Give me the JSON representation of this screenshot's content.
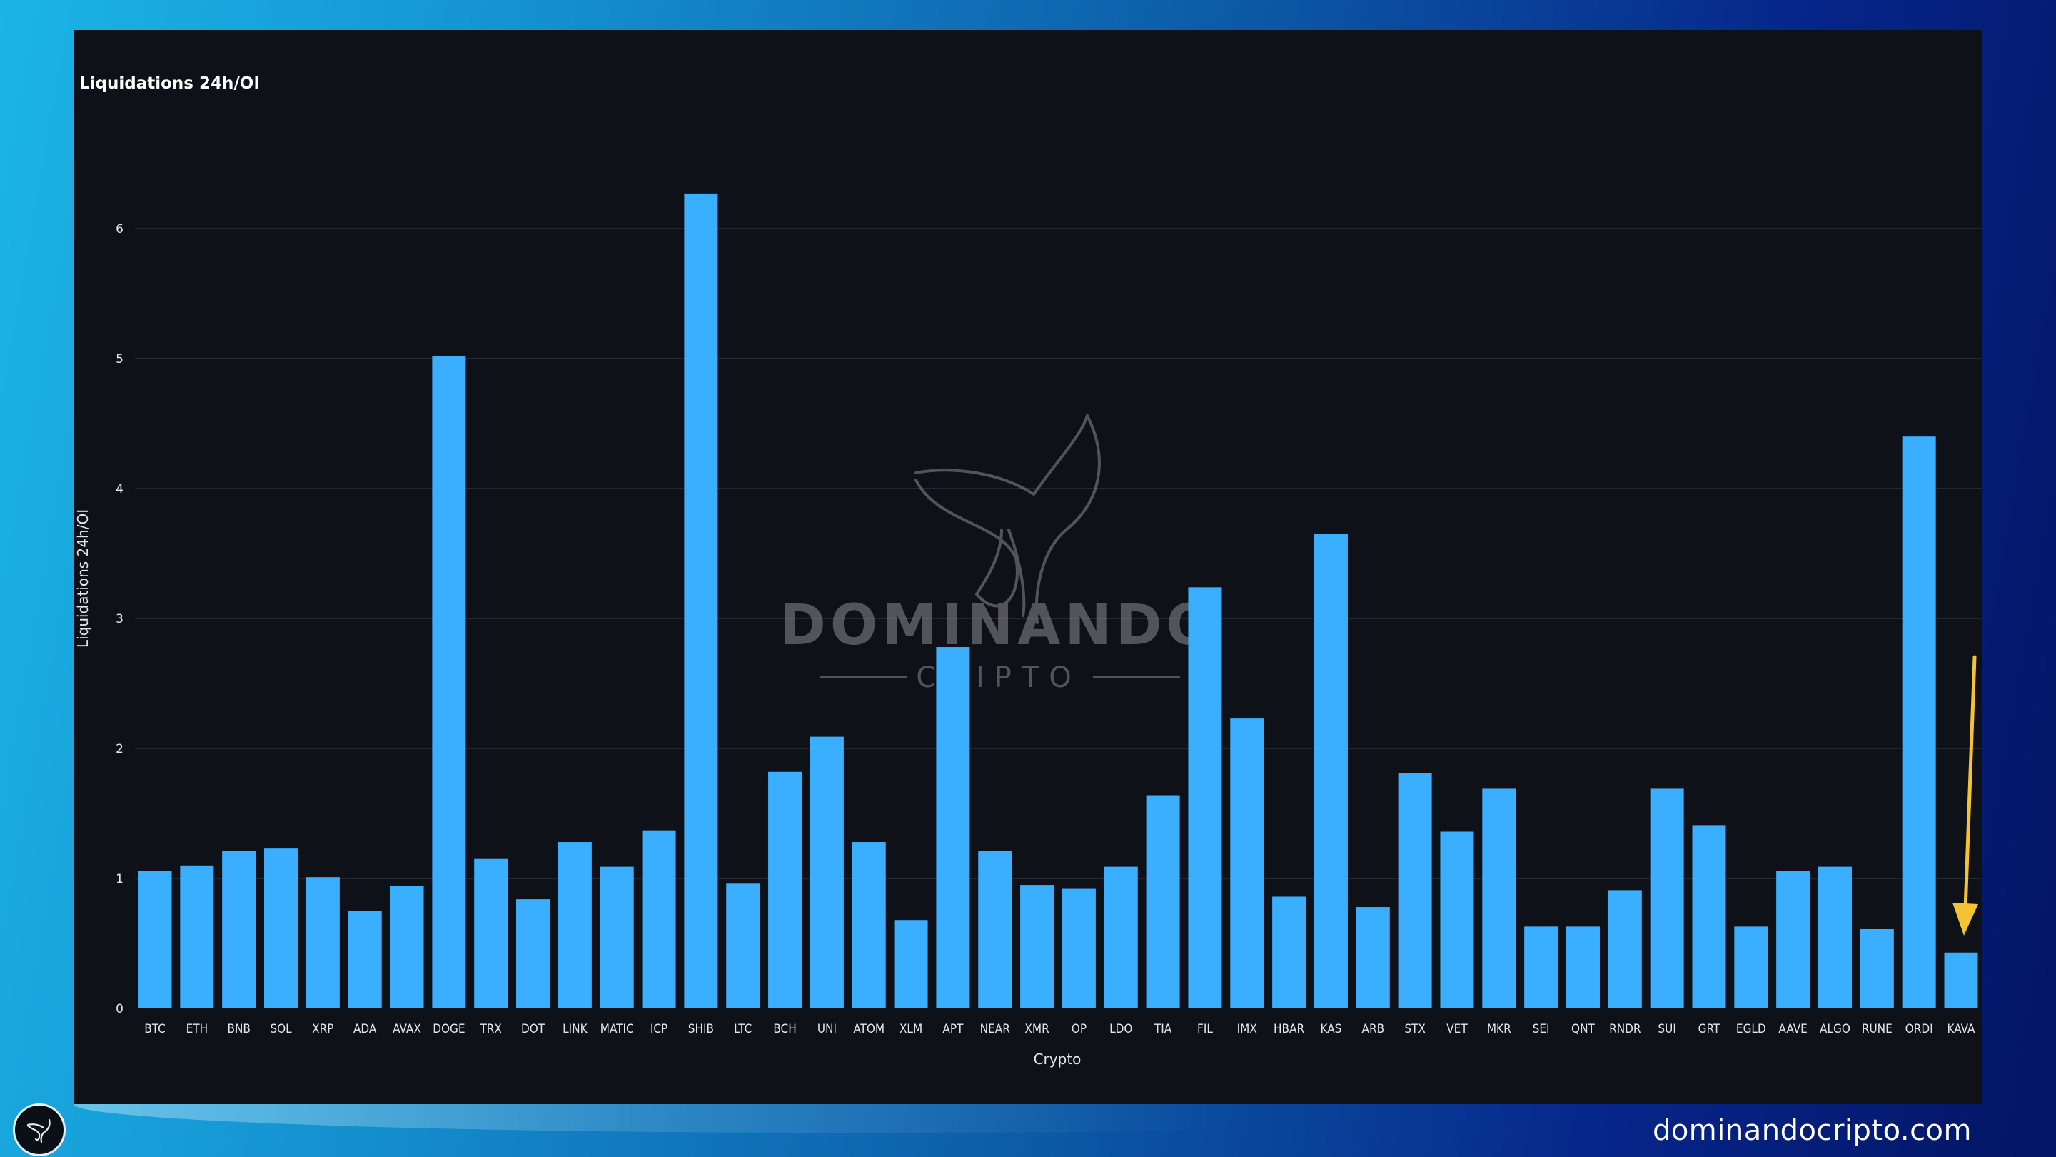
{
  "site": {
    "url": "dominandocripto.com"
  },
  "watermark": {
    "brand_line1": "DOMINANDO",
    "brand_line2": "CRIPTO"
  },
  "colors": {
    "bar": "#3aafff",
    "panel_background": "#0e1118",
    "arrow": "#f5c230",
    "gridline": "#2c303a"
  },
  "annotation": {
    "type": "arrow",
    "points_to": "KAVA",
    "color": "#f5c230"
  },
  "icons": {
    "corner_logo": "whale-tail-icon",
    "watermark_logo": "whale-tail-icon"
  },
  "chart_data": {
    "type": "bar",
    "title": "Liquidations 24h/OI",
    "xlabel": "Crypto",
    "ylabel": "Liquidations 24h/OI",
    "ylim": [
      0,
      6.5
    ],
    "yticks": [
      0,
      1,
      2,
      3,
      4,
      5,
      6
    ],
    "grid": true,
    "categories": [
      "BTC",
      "ETH",
      "BNB",
      "SOL",
      "XRP",
      "ADA",
      "AVAX",
      "DOGE",
      "TRX",
      "DOT",
      "LINK",
      "MATIC",
      "ICP",
      "SHIB",
      "LTC",
      "BCH",
      "UNI",
      "ATOM",
      "XLM",
      "APT",
      "NEAR",
      "XMR",
      "OP",
      "LDO",
      "TIA",
      "FIL",
      "IMX",
      "HBAR",
      "KAS",
      "ARB",
      "STX",
      "VET",
      "MKR",
      "SEI",
      "QNT",
      "RNDR",
      "SUI",
      "GRT",
      "EGLD",
      "AAVE",
      "ALGO",
      "RUNE",
      "ORDI",
      "KAVA"
    ],
    "values": [
      1.06,
      1.1,
      1.21,
      1.23,
      1.01,
      0.75,
      0.94,
      5.02,
      1.15,
      0.84,
      1.28,
      1.09,
      1.37,
      6.27,
      0.96,
      1.82,
      2.09,
      1.28,
      0.68,
      2.78,
      1.21,
      0.95,
      0.92,
      1.09,
      1.64,
      3.24,
      2.23,
      0.86,
      3.65,
      0.78,
      1.81,
      1.36,
      1.69,
      0.63,
      0.63,
      0.91,
      1.69,
      1.41,
      0.63,
      1.06,
      1.09,
      0.61,
      4.4,
      0.43
    ]
  }
}
